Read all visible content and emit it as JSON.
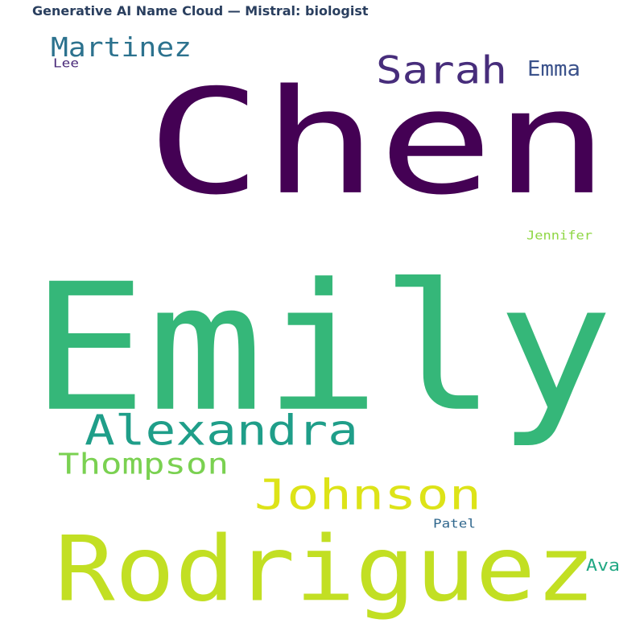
{
  "title": "Generative AI Name Cloud — Mistral: biologist",
  "chart_data": {
    "type": "wordcloud",
    "words": [
      {
        "text": "Emily",
        "rank": 1,
        "color": "#35b779"
      },
      {
        "text": "Chen",
        "rank": 2,
        "color": "#440154"
      },
      {
        "text": "Rodriguez",
        "rank": 3,
        "color": "#c2df23"
      },
      {
        "text": "Alexandra",
        "rank": 4,
        "color": "#1f9e89"
      },
      {
        "text": "Sarah",
        "rank": 5,
        "color": "#472d7b"
      },
      {
        "text": "Johnson",
        "rank": 6,
        "color": "#dde318"
      },
      {
        "text": "Martinez",
        "rank": 7,
        "color": "#2c728e"
      },
      {
        "text": "Thompson",
        "rank": 8,
        "color": "#7ad151"
      },
      {
        "text": "Emma",
        "rank": 9,
        "color": "#3b528b"
      },
      {
        "text": "Ava",
        "rank": 10,
        "color": "#22a884"
      },
      {
        "text": "Patel",
        "rank": 11,
        "color": "#31688e"
      },
      {
        "text": "Jennifer",
        "rank": 12,
        "color": "#8fd744"
      },
      {
        "text": "Lee",
        "rank": 13,
        "color": "#482878"
      }
    ]
  }
}
